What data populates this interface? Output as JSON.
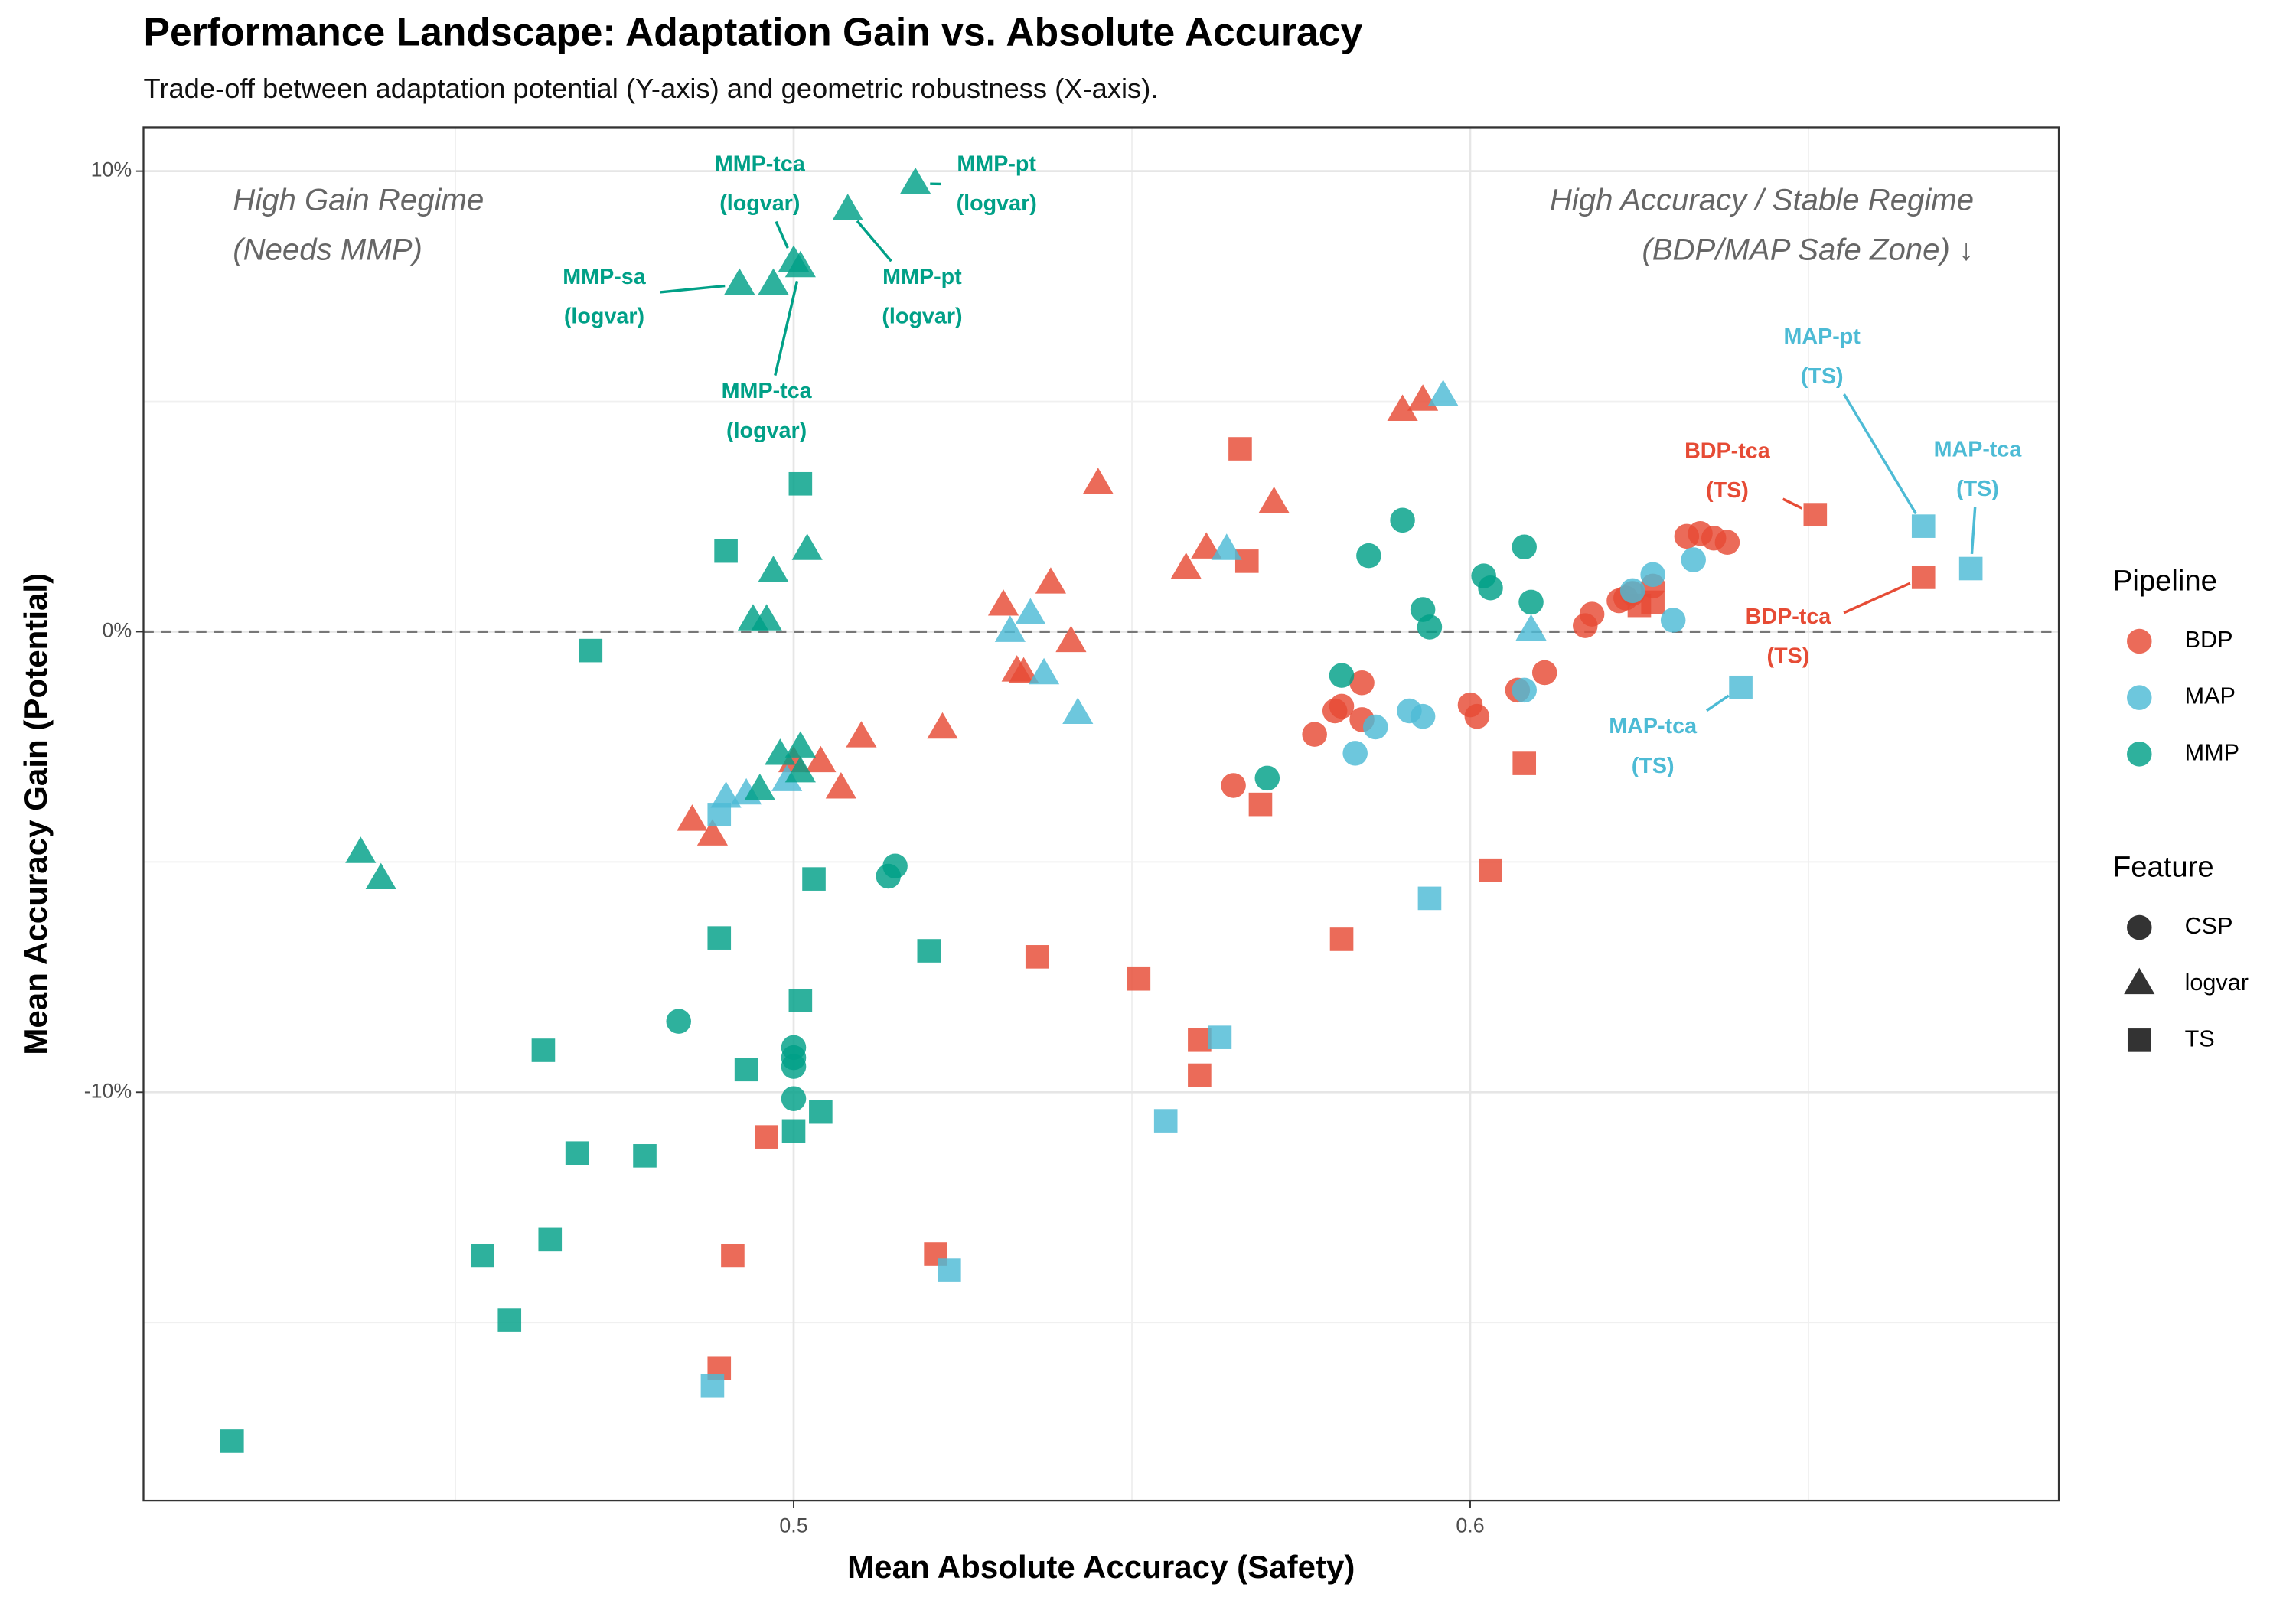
{
  "chart_data": {
    "type": "scatter",
    "title": "Performance Landscape: Adaptation Gain vs. Absolute Accuracy",
    "subtitle": "Trade-off between adaptation potential (Y-axis) and geometric robustness (X-axis).",
    "x_label": "Mean Absolute Accuracy (Safety)",
    "y_label": "Mean Accuracy Gain (Potential)",
    "xlim": [
      0.4039,
      0.687
    ],
    "ylim": [
      -18.87,
      10.95
    ],
    "xticks": [
      0.5,
      0.6
    ],
    "yticks": [
      {
        "value": -10,
        "label": "-10%"
      },
      {
        "value": 0,
        "label": "0%"
      },
      {
        "value": 10,
        "label": "10%"
      }
    ],
    "minor_xticks": [
      0.45,
      0.55,
      0.65
    ],
    "minor_yticks": [
      -15,
      -5,
      5
    ],
    "grid": true,
    "reference_line": 0,
    "legends": [
      {
        "title": "Pipeline",
        "items": [
          {
            "name": "BDP",
            "color": "#E64B35"
          },
          {
            "name": "MAP",
            "color": "#4DBBD5"
          },
          {
            "name": "MMP",
            "color": "#00A087"
          }
        ]
      },
      {
        "title": "Feature",
        "items": [
          {
            "name": "CSP",
            "shape": "circle"
          },
          {
            "name": "logvar",
            "shape": "triangle"
          },
          {
            "name": "TS",
            "shape": "square"
          }
        ]
      }
    ],
    "series": [
      {
        "pipeline": "BDP",
        "feature": "CSP",
        "x": [
          0.617,
          0.618,
          0.622,
          0.623,
          0.624,
          0.627,
          0.632,
          0.634,
          0.636,
          0.638,
          0.611,
          0.607,
          0.6,
          0.601,
          0.584,
          0.58,
          0.581,
          0.584,
          0.577,
          0.565
        ],
        "y": [
          0.13,
          0.38,
          0.67,
          0.73,
          0.83,
          0.99,
          2.07,
          2.13,
          2.03,
          1.94,
          -0.89,
          -1.27,
          -1.59,
          -1.84,
          -1.11,
          -1.72,
          -1.62,
          -1.91,
          -2.23,
          -3.34
        ]
      },
      {
        "pipeline": "BDP",
        "feature": "logvar",
        "x": [
          0.545,
          0.571,
          0.59,
          0.593,
          0.558,
          0.561,
          0.538,
          0.531,
          0.533,
          0.534,
          0.541,
          0.522,
          0.51,
          0.504,
          0.507,
          0.5,
          0.485,
          0.488
        ],
        "y": [
          3.21,
          2.8,
          4.8,
          5.02,
          1.37,
          1.81,
          1.05,
          0.57,
          -0.86,
          -0.9,
          -0.22,
          -2.1,
          -2.29,
          -2.83,
          -3.4,
          -2.83,
          -4.1,
          -4.42
        ]
      },
      {
        "pipeline": "BDP",
        "feature": "TS",
        "x": [
          0.566,
          0.567,
          0.651,
          0.667,
          0.627,
          0.625,
          0.608,
          0.603,
          0.581,
          0.569,
          0.551,
          0.536,
          0.56,
          0.56,
          0.496,
          0.491,
          0.521,
          0.489
        ],
        "y": [
          3.97,
          1.53,
          2.54,
          1.18,
          0.64,
          0.57,
          -2.86,
          -5.18,
          -6.68,
          -3.75,
          -7.54,
          -7.06,
          -8.87,
          -9.63,
          -10.97,
          -13.55,
          -13.51,
          -15.99
        ]
      },
      {
        "pipeline": "MAP",
        "feature": "CSP",
        "x": [
          0.627,
          0.633,
          0.624,
          0.63,
          0.608,
          0.591,
          0.593,
          0.586,
          0.583
        ],
        "y": [
          1.24,
          1.56,
          0.89,
          0.25,
          -1.27,
          -1.72,
          -1.84,
          -2.07,
          -2.64
        ]
      },
      {
        "pipeline": "MAP",
        "feature": "logvar",
        "x": [
          0.596,
          0.564,
          0.535,
          0.532,
          0.537,
          0.542,
          0.609,
          0.493,
          0.49,
          0.499
        ],
        "y": [
          5.12,
          1.78,
          0.38,
          0,
          -0.92,
          -1.78,
          0.03,
          -3.53,
          -3.6,
          -3.24
        ]
      },
      {
        "pipeline": "MAP",
        "feature": "TS",
        "x": [
          0.667,
          0.674,
          0.64,
          0.594,
          0.563,
          0.555,
          0.523,
          0.488,
          0.489
        ],
        "y": [
          2.29,
          1.37,
          -1.21,
          -5.79,
          -8.81,
          -10.62,
          -13.86,
          -16.38,
          -3.97
        ]
      },
      {
        "pipeline": "MMP",
        "feature": "CSP",
        "x": [
          0.59,
          0.585,
          0.608,
          0.602,
          0.603,
          0.593,
          0.594,
          0.609,
          0.581,
          0.57,
          0.515,
          0.514,
          0.483,
          0.5,
          0.5,
          0.5,
          0.5
        ],
        "y": [
          2.42,
          1.65,
          1.84,
          1.21,
          0.95,
          0.48,
          0.1,
          0.64,
          -0.95,
          -3.18,
          -5.09,
          -5.31,
          -8.46,
          -9.03,
          -9.25,
          -9.44,
          -10.14
        ]
      },
      {
        "pipeline": "MMP",
        "feature": "logvar",
        "x": [
          0.518,
          0.508,
          0.5,
          0.501,
          0.492,
          0.497,
          0.502,
          0.497,
          0.494,
          0.496,
          0.501,
          0.501,
          0.498,
          0.495,
          0.436,
          0.439
        ],
        "y": [
          9.73,
          9.16,
          8.04,
          7.92,
          7.54,
          7.54,
          1.78,
          1.3,
          0.25,
          0.25,
          -2.51,
          -3.05,
          -2.67,
          -3.43,
          -4.8,
          -5.37
        ]
      },
      {
        "pipeline": "MMP",
        "feature": "TS",
        "x": [
          0.501,
          0.49,
          0.47,
          0.503,
          0.52,
          0.489,
          0.501,
          0.463,
          0.493,
          0.504,
          0.5,
          0.468,
          0.478,
          0.454,
          0.464,
          0.458,
          0.417
        ],
        "y": [
          3.21,
          1.75,
          -0.41,
          -5.37,
          -6.93,
          -6.65,
          -8.01,
          -9.09,
          -9.51,
          -10.43,
          -10.84,
          -11.32,
          -11.38,
          -13.55,
          -13.2,
          -14.94,
          -17.58
        ]
      }
    ],
    "annotations": [
      {
        "lines": [
          "MMP-tca",
          "(logvar)"
        ],
        "pipeline": "MMP",
        "x": 0.495,
        "y": 9.7,
        "point": [
          0.5,
          8.04
        ]
      },
      {
        "lines": [
          "MMP-pt",
          "(logvar)"
        ],
        "pipeline": "MMP",
        "x": 0.53,
        "y": 9.7,
        "point": [
          0.518,
          9.73
        ]
      },
      {
        "lines": [
          "MMP-sa",
          "(logvar)"
        ],
        "pipeline": "MMP",
        "x": 0.472,
        "y": 7.25,
        "point": [
          0.492,
          7.54
        ]
      },
      {
        "lines": [
          "MMP-pt",
          "(logvar)"
        ],
        "pipeline": "MMP",
        "x": 0.519,
        "y": 7.25,
        "point": [
          0.508,
          9.16
        ]
      },
      {
        "lines": [
          "MMP-tca",
          "(logvar)"
        ],
        "pipeline": "MMP",
        "x": 0.496,
        "y": 4.77,
        "point": [
          0.501,
          7.92
        ]
      },
      {
        "lines": [
          "MAP-pt",
          "(TS)"
        ],
        "pipeline": "MAP",
        "x": 0.652,
        "y": 5.95,
        "point": [
          0.667,
          2.29
        ]
      },
      {
        "lines": [
          "BDP-tca",
          "(TS)"
        ],
        "pipeline": "BDP",
        "x": 0.638,
        "y": 3.47,
        "point": [
          0.651,
          2.54
        ]
      },
      {
        "lines": [
          "MAP-tca",
          "(TS)"
        ],
        "pipeline": "MAP",
        "x": 0.675,
        "y": 3.5,
        "point": [
          0.674,
          1.37
        ]
      },
      {
        "lines": [
          "BDP-tca",
          "(TS)"
        ],
        "pipeline": "BDP",
        "x": 0.647,
        "y": -0.13,
        "point": [
          0.667,
          1.18
        ]
      },
      {
        "lines": [
          "MAP-tca",
          "(TS)"
        ],
        "pipeline": "MAP",
        "x": 0.627,
        "y": -2.51,
        "point": [
          0.64,
          -1.21
        ]
      }
    ],
    "notes": [
      {
        "lines": [
          "High Gain Regime",
          "(Needs MMP)"
        ],
        "corner": "top-left"
      },
      {
        "lines": [
          "High Accuracy / Stable Regime",
          "(BDP/MAP Safe Zone) ↓"
        ],
        "corner": "top-right"
      }
    ]
  }
}
